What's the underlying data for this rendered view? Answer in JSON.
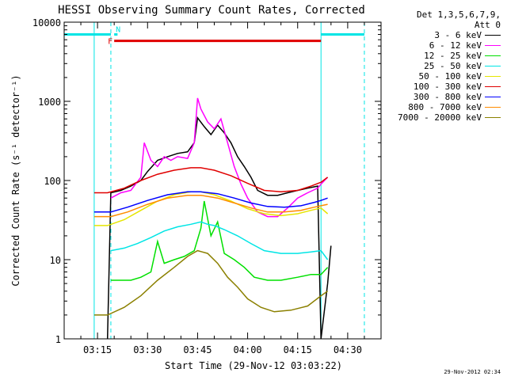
{
  "chart_data": {
    "type": "line",
    "title": "HESSI Observing Summary Count Rates, Corrected",
    "xlabel": "Start Time (29-Nov-12 03:03:22)",
    "ylabel": "Corrected Count Rate (s⁻¹ detector⁻¹)",
    "x_unit": "UT time (hh:mm)",
    "xlim": [
      "03:05",
      "04:40"
    ],
    "ylim": [
      1,
      10000
    ],
    "yscale": "log",
    "x_ticks": [
      "03:15",
      "03:30",
      "03:45",
      "04:00",
      "04:15",
      "04:30"
    ],
    "y_ticks": [
      "1",
      "10",
      "100",
      "1000",
      "10000"
    ],
    "legend_header": [
      "Det 1,3,5,6,7,9,",
      "Att 0"
    ],
    "legend_position": "right, outside plot",
    "timestamp": "29-Nov-2012 02:34",
    "night_bars": [
      {
        "label": "",
        "from": "03:05",
        "to": "03:19",
        "y": 7000,
        "color": "#00e5e5"
      },
      {
        "label": "",
        "from": "04:22",
        "to": "04:35",
        "y": 7000,
        "color": "#00e5e5"
      }
    ],
    "flag_bars": [
      {
        "label": "F",
        "from": "03:20",
        "to": "04:22",
        "y": 5800,
        "color": "#e00000"
      },
      {
        "label": "N",
        "from": "03:20",
        "to": "03:21",
        "y": 7000,
        "color": "#00e5e5"
      }
    ],
    "vlines": [
      {
        "t": "03:05",
        "style": "solid",
        "color": "#00e5e5"
      },
      {
        "t": "03:14",
        "style": "solid",
        "color": "#00e5e5"
      },
      {
        "t": "03:19",
        "style": "dashed",
        "color": "#00e5e5"
      },
      {
        "t": "04:22",
        "style": "solid",
        "color": "#00e5e5"
      },
      {
        "t": "04:35",
        "style": "dashed",
        "color": "#00e5e5"
      }
    ],
    "series": [
      {
        "name": "3 - 6 keV",
        "color": "#000000",
        "points": [
          [
            "03:18",
            1
          ],
          [
            "03:19",
            70
          ],
          [
            "03:22",
            75
          ],
          [
            "03:25",
            85
          ],
          [
            "03:28",
            100
          ],
          [
            "03:30",
            130
          ],
          [
            "03:33",
            180
          ],
          [
            "03:36",
            200
          ],
          [
            "03:39",
            220
          ],
          [
            "03:42",
            230
          ],
          [
            "03:44",
            300
          ],
          [
            "03:45",
            620
          ],
          [
            "03:47",
            480
          ],
          [
            "03:49",
            380
          ],
          [
            "03:51",
            500
          ],
          [
            "03:53",
            400
          ],
          [
            "03:55",
            300
          ],
          [
            "03:57",
            200
          ],
          [
            "03:59",
            150
          ],
          [
            "04:01",
            110
          ],
          [
            "04:03",
            75
          ],
          [
            "04:06",
            65
          ],
          [
            "04:09",
            65
          ],
          [
            "04:12",
            70
          ],
          [
            "04:15",
            75
          ],
          [
            "04:18",
            80
          ],
          [
            "04:21",
            85
          ],
          [
            "04:22",
            1
          ],
          [
            "04:24",
            5
          ],
          [
            "04:25",
            15
          ]
        ]
      },
      {
        "name": "6 - 12 keV",
        "color": "#ff00ff",
        "points": [
          [
            "03:19",
            60
          ],
          [
            "03:22",
            70
          ],
          [
            "03:25",
            75
          ],
          [
            "03:28",
            110
          ],
          [
            "03:29",
            300
          ],
          [
            "03:31",
            180
          ],
          [
            "03:33",
            150
          ],
          [
            "03:35",
            200
          ],
          [
            "03:37",
            180
          ],
          [
            "03:39",
            200
          ],
          [
            "03:42",
            190
          ],
          [
            "03:44",
            300
          ],
          [
            "03:45",
            1100
          ],
          [
            "03:46",
            800
          ],
          [
            "03:48",
            550
          ],
          [
            "03:50",
            450
          ],
          [
            "03:52",
            600
          ],
          [
            "03:54",
            300
          ],
          [
            "03:56",
            150
          ],
          [
            "03:58",
            90
          ],
          [
            "04:00",
            60
          ],
          [
            "04:03",
            40
          ],
          [
            "04:06",
            35
          ],
          [
            "04:09",
            35
          ],
          [
            "04:12",
            45
          ],
          [
            "04:15",
            60
          ],
          [
            "04:18",
            70
          ],
          [
            "04:21",
            80
          ],
          [
            "04:22",
            90
          ],
          [
            "04:24",
            110
          ]
        ]
      },
      {
        "name": "12 - 25 keV",
        "color": "#00e000",
        "points": [
          [
            "03:19",
            5.5
          ],
          [
            "03:25",
            5.5
          ],
          [
            "03:28",
            6
          ],
          [
            "03:31",
            7
          ],
          [
            "03:33",
            17
          ],
          [
            "03:35",
            9
          ],
          [
            "03:38",
            10
          ],
          [
            "03:41",
            11
          ],
          [
            "03:44",
            13
          ],
          [
            "03:46",
            25
          ],
          [
            "03:47",
            55
          ],
          [
            "03:49",
            20
          ],
          [
            "03:51",
            30
          ],
          [
            "03:53",
            12
          ],
          [
            "03:56",
            10
          ],
          [
            "03:59",
            8
          ],
          [
            "04:02",
            6
          ],
          [
            "04:06",
            5.5
          ],
          [
            "04:10",
            5.5
          ],
          [
            "04:15",
            6
          ],
          [
            "04:19",
            6.5
          ],
          [
            "04:22",
            6.5
          ],
          [
            "04:24",
            8
          ]
        ]
      },
      {
        "name": "25 - 50 keV",
        "color": "#00e5e5",
        "points": [
          [
            "03:19",
            13
          ],
          [
            "03:23",
            14
          ],
          [
            "03:27",
            16
          ],
          [
            "03:31",
            19
          ],
          [
            "03:35",
            23
          ],
          [
            "03:39",
            26
          ],
          [
            "03:43",
            28
          ],
          [
            "03:46",
            30
          ],
          [
            "03:48",
            28
          ],
          [
            "03:50",
            27
          ],
          [
            "03:53",
            24
          ],
          [
            "03:57",
            20
          ],
          [
            "04:01",
            16
          ],
          [
            "04:05",
            13
          ],
          [
            "04:10",
            12
          ],
          [
            "04:15",
            12
          ],
          [
            "04:19",
            12.5
          ],
          [
            "04:22",
            13
          ],
          [
            "04:24",
            10
          ]
        ]
      },
      {
        "name": "50 - 100 keV",
        "color": "#e5e500",
        "points": [
          [
            "03:14",
            27
          ],
          [
            "03:18",
            27
          ],
          [
            "03:23",
            32
          ],
          [
            "03:28",
            42
          ],
          [
            "03:33",
            55
          ],
          [
            "03:38",
            66
          ],
          [
            "03:43",
            72
          ],
          [
            "03:46",
            72
          ],
          [
            "03:50",
            66
          ],
          [
            "03:55",
            55
          ],
          [
            "04:00",
            44
          ],
          [
            "04:05",
            38
          ],
          [
            "04:10",
            36
          ],
          [
            "04:15",
            38
          ],
          [
            "04:19",
            42
          ],
          [
            "04:22",
            45
          ],
          [
            "04:24",
            38
          ]
        ]
      },
      {
        "name": "100 - 300 keV",
        "color": "#e00000",
        "points": [
          [
            "03:14",
            70
          ],
          [
            "03:18",
            70
          ],
          [
            "03:23",
            80
          ],
          [
            "03:28",
            100
          ],
          [
            "03:33",
            120
          ],
          [
            "03:38",
            135
          ],
          [
            "03:43",
            145
          ],
          [
            "03:46",
            145
          ],
          [
            "03:50",
            135
          ],
          [
            "03:55",
            115
          ],
          [
            "04:00",
            92
          ],
          [
            "04:05",
            75
          ],
          [
            "04:10",
            72
          ],
          [
            "04:15",
            75
          ],
          [
            "04:19",
            85
          ],
          [
            "04:22",
            95
          ],
          [
            "04:24",
            110
          ]
        ]
      },
      {
        "name": "300 - 800 keV",
        "color": "#0000ff",
        "points": [
          [
            "03:14",
            40
          ],
          [
            "03:19",
            40
          ],
          [
            "03:24",
            46
          ],
          [
            "03:30",
            56
          ],
          [
            "03:36",
            66
          ],
          [
            "03:42",
            72
          ],
          [
            "03:46",
            72
          ],
          [
            "03:51",
            68
          ],
          [
            "03:56",
            60
          ],
          [
            "04:01",
            52
          ],
          [
            "04:06",
            47
          ],
          [
            "04:11",
            46
          ],
          [
            "04:16",
            48
          ],
          [
            "04:20",
            53
          ],
          [
            "04:22",
            56
          ],
          [
            "04:24",
            60
          ]
        ]
      },
      {
        "name": "800 - 7000 keV",
        "color": "#ff8c00",
        "points": [
          [
            "03:14",
            35
          ],
          [
            "03:19",
            35
          ],
          [
            "03:24",
            40
          ],
          [
            "03:30",
            50
          ],
          [
            "03:36",
            60
          ],
          [
            "03:42",
            65
          ],
          [
            "03:46",
            65
          ],
          [
            "03:51",
            60
          ],
          [
            "03:56",
            52
          ],
          [
            "04:01",
            45
          ],
          [
            "04:06",
            40
          ],
          [
            "04:11",
            40
          ],
          [
            "04:16",
            42
          ],
          [
            "04:20",
            46
          ],
          [
            "04:22",
            48
          ],
          [
            "04:24",
            50
          ]
        ]
      },
      {
        "name": "7000 - 20000 keV",
        "color": "#8b8000",
        "points": [
          [
            "03:14",
            2
          ],
          [
            "03:18",
            2
          ],
          [
            "03:23",
            2.5
          ],
          [
            "03:28",
            3.5
          ],
          [
            "03:33",
            5.5
          ],
          [
            "03:38",
            8
          ],
          [
            "03:42",
            11
          ],
          [
            "03:45",
            13
          ],
          [
            "03:48",
            12
          ],
          [
            "03:51",
            9
          ],
          [
            "03:54",
            6
          ],
          [
            "03:57",
            4.5
          ],
          [
            "04:00",
            3.2
          ],
          [
            "04:04",
            2.5
          ],
          [
            "04:08",
            2.2
          ],
          [
            "04:13",
            2.3
          ],
          [
            "04:18",
            2.6
          ],
          [
            "04:22",
            3.5
          ],
          [
            "04:24",
            4
          ]
        ]
      }
    ]
  }
}
